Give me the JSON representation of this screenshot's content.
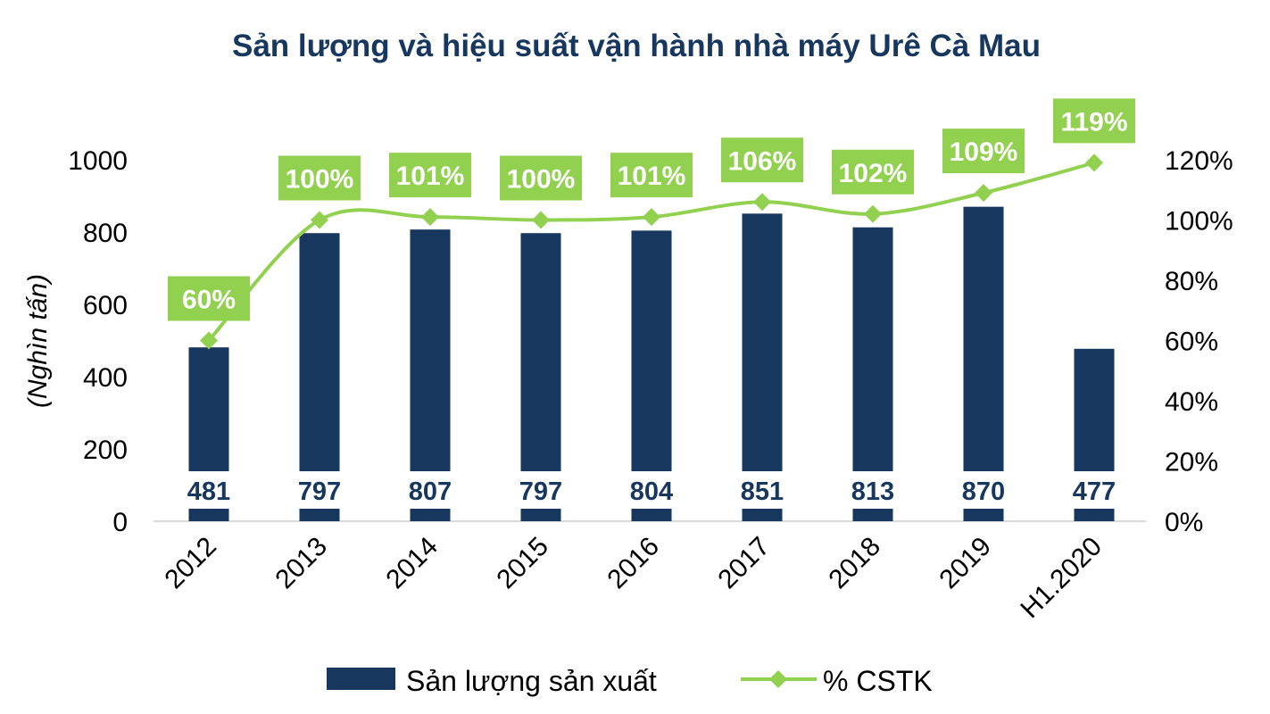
{
  "chart_data": {
    "type": "bar",
    "title": "Sản lượng và hiệu suất vận hành nhà máy Urê Cà Mau",
    "categories": [
      "2012",
      "2013",
      "2014",
      "2015",
      "2016",
      "2017",
      "2018",
      "2019",
      "H1.2020"
    ],
    "ylabel": "(Nghìn tấn)",
    "ylim": [
      0,
      1000
    ],
    "yticks": [
      "0",
      "200",
      "400",
      "600",
      "800",
      "1000"
    ],
    "y2lim": [
      0,
      120
    ],
    "y2ticks": [
      "0%",
      "20%",
      "40%",
      "60%",
      "80%",
      "100%",
      "120%"
    ],
    "grid": false,
    "legend_position": "bottom",
    "series": [
      {
        "name": "Sản lượng sản xuất",
        "type": "bar",
        "axis": "left",
        "color": "#17375e",
        "values": [
          481,
          797,
          807,
          797,
          804,
          851,
          813,
          870,
          477
        ],
        "labels": [
          "481",
          "797",
          "807",
          "797",
          "804",
          "851",
          "813",
          "870",
          "477"
        ]
      },
      {
        "name": "% CSTK",
        "type": "line",
        "axis": "right",
        "color": "#92d050",
        "marker": "diamond",
        "smooth": true,
        "values": [
          60,
          100,
          101,
          100,
          101,
          106,
          102,
          109,
          119
        ],
        "labels": [
          "60%",
          "100%",
          "101%",
          "100%",
          "101%",
          "106%",
          "102%",
          "109%",
          "119%"
        ],
        "label_box_color": "#92d050"
      }
    ]
  }
}
